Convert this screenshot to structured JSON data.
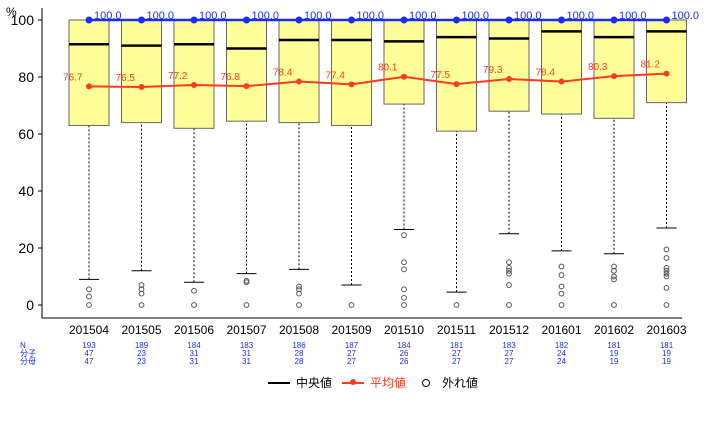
{
  "chart_data": {
    "type": "box",
    "y_unit_label": "%",
    "ylim": [
      0,
      100
    ],
    "y_ticks": [
      0,
      20,
      40,
      60,
      80,
      100
    ],
    "categories": [
      "201504",
      "201505",
      "201506",
      "201507",
      "201508",
      "201509",
      "201510",
      "201511",
      "201512",
      "201601",
      "201602",
      "201603"
    ],
    "boxes": [
      {
        "q1": 63,
        "median": 91.5,
        "q3": 100,
        "whisker_low": 9,
        "whisker_high": 100
      },
      {
        "q1": 64,
        "median": 91,
        "q3": 100,
        "whisker_low": 12,
        "whisker_high": 100
      },
      {
        "q1": 62,
        "median": 91.5,
        "q3": 100,
        "whisker_low": 8,
        "whisker_high": 100
      },
      {
        "q1": 64.5,
        "median": 90,
        "q3": 100,
        "whisker_low": 11,
        "whisker_high": 100
      },
      {
        "q1": 64,
        "median": 93,
        "q3": 100,
        "whisker_low": 12.5,
        "whisker_high": 100
      },
      {
        "q1": 63,
        "median": 93,
        "q3": 100,
        "whisker_low": 7,
        "whisker_high": 100
      },
      {
        "q1": 70.5,
        "median": 92.5,
        "q3": 100,
        "whisker_low": 26.5,
        "whisker_high": 100
      },
      {
        "q1": 61,
        "median": 94,
        "q3": 100,
        "whisker_low": 4.5,
        "whisker_high": 100
      },
      {
        "q1": 68,
        "median": 93.5,
        "q3": 100,
        "whisker_low": 25,
        "whisker_high": 100
      },
      {
        "q1": 67,
        "median": 96,
        "q3": 100,
        "whisker_low": 19,
        "whisker_high": 100
      },
      {
        "q1": 65.5,
        "median": 94,
        "q3": 100,
        "whisker_low": 18,
        "whisker_high": 100
      },
      {
        "q1": 71,
        "median": 96,
        "q3": 100,
        "whisker_low": 27,
        "whisker_high": 100
      }
    ],
    "outliers": [
      [
        0,
        3,
        5.5
      ],
      [
        0,
        4,
        5.5,
        7
      ],
      [
        0,
        5
      ],
      [
        0,
        8,
        8.5
      ],
      [
        0,
        4,
        5.5,
        6.5
      ],
      [
        0
      ],
      [
        0,
        2.5,
        5.5,
        12.5,
        15,
        24.5
      ],
      [
        0
      ],
      [
        0,
        7,
        11,
        12,
        13,
        15
      ],
      [
        0,
        4,
        6.5,
        10.5,
        13.5
      ],
      [
        0,
        9,
        10,
        12,
        13.5
      ],
      [
        0,
        6,
        10,
        11,
        12,
        13,
        16.5,
        19.5
      ]
    ],
    "max_series": [
      100.0,
      100.0,
      100.0,
      100.0,
      100.0,
      100.0,
      100.0,
      100.0,
      100.0,
      100.0,
      100.0,
      100.0
    ],
    "max_labels": [
      "100.0",
      "100.0",
      "100.0",
      "100.0",
      "100.0",
      "100.0",
      "100.0",
      "100.0",
      "100.0",
      "100.0",
      "100.0",
      "100.0"
    ],
    "mean_series": [
      76.7,
      76.5,
      77.2,
      76.8,
      78.4,
      77.4,
      80.1,
      77.5,
      79.3,
      78.4,
      80.3,
      81.2
    ],
    "mean_labels": [
      "76.7",
      "76.5",
      "77.2",
      "76.8",
      "78.4",
      "77.4",
      "80.1",
      "77.5",
      "79.3",
      "78.4",
      "80.3",
      "81.2"
    ],
    "count_row_labels": [
      "N",
      "分子",
      "分母"
    ],
    "counts": [
      [
        "193",
        "47",
        "47"
      ],
      [
        "189",
        "23",
        "23"
      ],
      [
        "184",
        "31",
        "31"
      ],
      [
        "183",
        "31",
        "31"
      ],
      [
        "186",
        "28",
        "28"
      ],
      [
        "187",
        "27",
        "27"
      ],
      [
        "184",
        "26",
        "26"
      ],
      [
        "181",
        "27",
        "27"
      ],
      [
        "183",
        "27",
        "27"
      ],
      [
        "182",
        "24",
        "24"
      ],
      [
        "181",
        "19",
        "19"
      ],
      [
        "181",
        "19",
        "19"
      ]
    ],
    "colors": {
      "box_fill": "#ffff99",
      "box_stroke": "#666666",
      "median": "#000000",
      "mean": "#ff3b1f",
      "max": "#1a2bff",
      "count_text": "#1a2bff"
    },
    "legend": {
      "median": "中央値",
      "mean": "平均値",
      "outlier": "外れ値"
    }
  }
}
